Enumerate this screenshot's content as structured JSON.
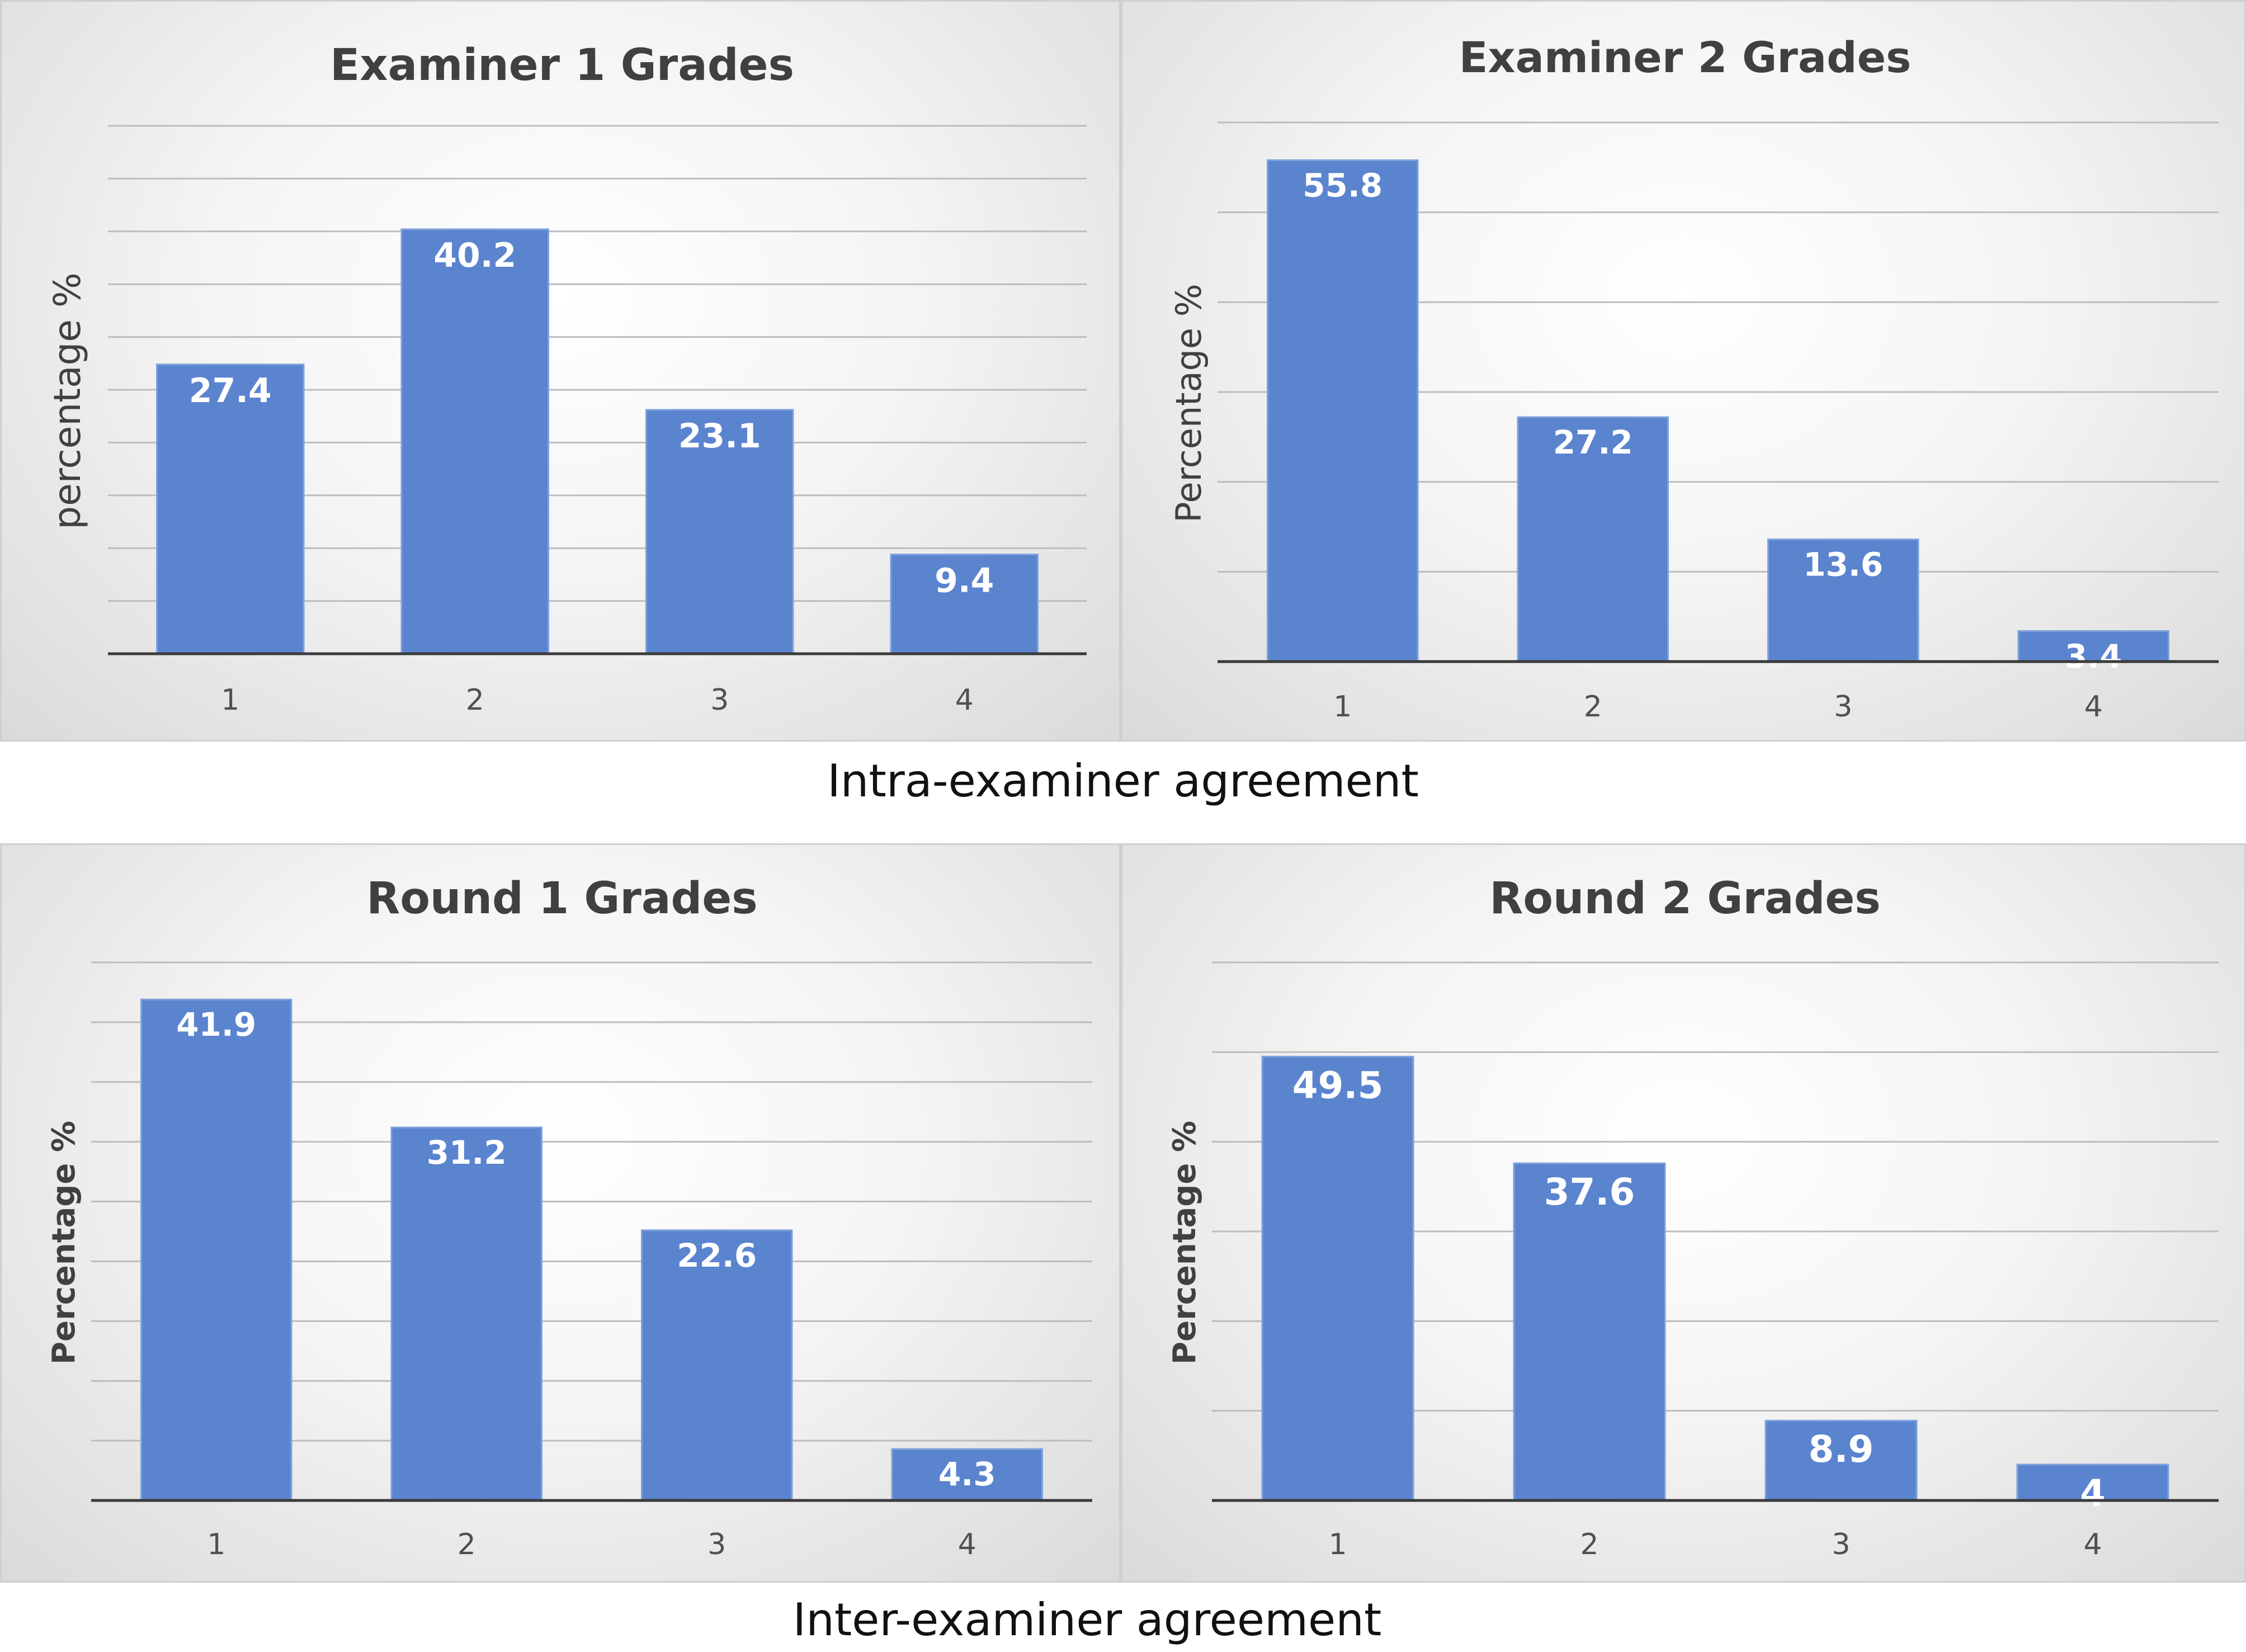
{
  "captions": {
    "intra": "Intra-examiner agreement",
    "inter": "Inter-examiner agreement"
  },
  "colors": {
    "bar": "#5b84cf",
    "bar_edge": "#7fa1dc",
    "grid": "#bdbdbd",
    "axis": "#3a3a3a",
    "title": "#404040",
    "ylabel": "#404040",
    "tick": "#505050",
    "label": "#ffffff"
  },
  "chart_data": [
    {
      "type": "bar",
      "title": "Examiner 1 Grades",
      "xlabel": "",
      "ylabel": "percentage %",
      "categories": [
        "1",
        "2",
        "3",
        "4"
      ],
      "values": [
        27.4,
        40.2,
        23.1,
        9.4
      ],
      "value_labels": [
        "27.4",
        "40.2",
        "23.1",
        "9.4"
      ],
      "ylim": [
        0,
        50
      ],
      "gridlines": [
        5,
        10,
        15,
        20,
        25,
        30,
        35,
        40,
        45,
        50
      ]
    },
    {
      "type": "bar",
      "title": "Examiner 2 Grades",
      "xlabel": "",
      "ylabel": "Percentage %",
      "categories": [
        "1",
        "2",
        "3",
        "4"
      ],
      "values": [
        55.8,
        27.2,
        13.6,
        3.4
      ],
      "value_labels": [
        "55.8",
        "27.2",
        "13.6",
        "3.4"
      ],
      "ylim": [
        0,
        60
      ],
      "gridlines": [
        10,
        20,
        30,
        40,
        50,
        60
      ]
    },
    {
      "type": "bar",
      "title": "Round 1 Grades",
      "xlabel": "",
      "ylabel": "Percentage %",
      "categories": [
        "1",
        "2",
        "3",
        "4"
      ],
      "values": [
        41.9,
        31.2,
        22.6,
        4.3
      ],
      "value_labels": [
        "41.9",
        "31.2",
        "22.6",
        "4.3"
      ],
      "ylim": [
        0,
        45
      ],
      "gridlines": [
        5,
        10,
        15,
        20,
        25,
        30,
        35,
        40,
        45
      ]
    },
    {
      "type": "bar",
      "title": "Round 2 Grades",
      "xlabel": "",
      "ylabel": "Percentage %",
      "categories": [
        "1",
        "2",
        "3",
        "4"
      ],
      "values": [
        49.5,
        37.6,
        8.9,
        4
      ],
      "value_labels": [
        "49.5",
        "37.6",
        "8.9",
        "4"
      ],
      "ylim": [
        0,
        60
      ],
      "gridlines": [
        10,
        20,
        30,
        40,
        50,
        60
      ]
    }
  ]
}
